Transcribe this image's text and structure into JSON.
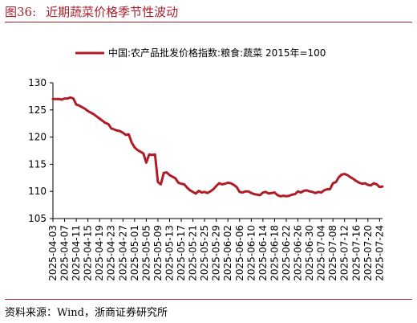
{
  "figure": {
    "number": "图36:",
    "title": "近期蔬菜价格季节性波动",
    "source": "资料来源：Wind，浙商证券研究所"
  },
  "chart_data": {
    "type": "line",
    "title": "",
    "xlabel": "",
    "ylabel": "",
    "ylim": [
      105,
      130
    ],
    "yticks": [
      105,
      110,
      115,
      120,
      125,
      130
    ],
    "grid": false,
    "legend_position": "top",
    "x_tick_labels": [
      "2025-04-03",
      "2025-04-07",
      "2025-04-11",
      "2025-04-15",
      "2025-04-19",
      "2025-04-23",
      "2025-04-27",
      "2025-05-01",
      "2025-05-05",
      "2025-05-09",
      "2025-05-13",
      "2025-05-17",
      "2025-05-21",
      "2025-05-25",
      "2025-05-29",
      "2025-06-02",
      "2025-06-06",
      "2025-06-10",
      "2025-06-14",
      "2025-06-18",
      "2025-06-22",
      "2025-06-26",
      "2025-06-30",
      "2025-07-04",
      "2025-07-08",
      "2025-07-12",
      "2025-07-16",
      "2025-07-20",
      "2025-07-24"
    ],
    "series": [
      {
        "name": "中国:农产品批发价格指数:粮食:蔬菜 2015年=100",
        "color": "#b01c26",
        "x": [
          "2025-04-03",
          "2025-04-04",
          "2025-04-05",
          "2025-04-06",
          "2025-04-07",
          "2025-04-08",
          "2025-04-09",
          "2025-04-10",
          "2025-04-11",
          "2025-04-12",
          "2025-04-13",
          "2025-04-14",
          "2025-04-15",
          "2025-04-16",
          "2025-04-17",
          "2025-04-18",
          "2025-04-19",
          "2025-04-20",
          "2025-04-21",
          "2025-04-22",
          "2025-04-23",
          "2025-04-24",
          "2025-04-25",
          "2025-04-26",
          "2025-04-27",
          "2025-04-28",
          "2025-04-29",
          "2025-04-30",
          "2025-05-01",
          "2025-05-02",
          "2025-05-03",
          "2025-05-04",
          "2025-05-05",
          "2025-05-06",
          "2025-05-07",
          "2025-05-08",
          "2025-05-09",
          "2025-05-10",
          "2025-05-11",
          "2025-05-12",
          "2025-05-13",
          "2025-05-14",
          "2025-05-15",
          "2025-05-16",
          "2025-05-17",
          "2025-05-18",
          "2025-05-19",
          "2025-05-20",
          "2025-05-21",
          "2025-05-22",
          "2025-05-23",
          "2025-05-24",
          "2025-05-25",
          "2025-05-26",
          "2025-05-27",
          "2025-05-28",
          "2025-05-29",
          "2025-05-30",
          "2025-05-31",
          "2025-06-01",
          "2025-06-02",
          "2025-06-03",
          "2025-06-04",
          "2025-06-05",
          "2025-06-06",
          "2025-06-07",
          "2025-06-08",
          "2025-06-09",
          "2025-06-10",
          "2025-06-11",
          "2025-06-12",
          "2025-06-13",
          "2025-06-14",
          "2025-06-15",
          "2025-06-16",
          "2025-06-17",
          "2025-06-18",
          "2025-06-19",
          "2025-06-20",
          "2025-06-21",
          "2025-06-22",
          "2025-06-23",
          "2025-06-24",
          "2025-06-25",
          "2025-06-26",
          "2025-06-27",
          "2025-06-28",
          "2025-06-29",
          "2025-06-30",
          "2025-07-01",
          "2025-07-02",
          "2025-07-03",
          "2025-07-04",
          "2025-07-05",
          "2025-07-06",
          "2025-07-07",
          "2025-07-08",
          "2025-07-09",
          "2025-07-10",
          "2025-07-11",
          "2025-07-12",
          "2025-07-13",
          "2025-07-14",
          "2025-07-15",
          "2025-07-16",
          "2025-07-17",
          "2025-07-18",
          "2025-07-19",
          "2025-07-20",
          "2025-07-21",
          "2025-07-22",
          "2025-07-23",
          "2025-07-24",
          "2025-07-25"
        ],
        "values": [
          127.0,
          127.0,
          127.0,
          126.9,
          127.1,
          127.1,
          127.3,
          127.1,
          126.0,
          125.8,
          125.5,
          125.2,
          124.8,
          124.5,
          124.2,
          123.8,
          123.4,
          123.0,
          122.6,
          122.4,
          121.6,
          121.4,
          121.2,
          121.1,
          120.8,
          120.4,
          120.5,
          119.0,
          118.1,
          117.6,
          117.3,
          117.0,
          115.3,
          116.8,
          116.7,
          116.8,
          111.7,
          111.3,
          113.4,
          113.5,
          113.0,
          112.7,
          112.4,
          111.6,
          111.4,
          111.3,
          110.7,
          110.2,
          109.9,
          109.6,
          110.1,
          109.8,
          109.9,
          109.7,
          110.0,
          110.4,
          111.0,
          111.5,
          111.3,
          111.4,
          111.6,
          111.5,
          111.2,
          110.8,
          109.9,
          109.8,
          110.0,
          110.0,
          109.7,
          109.5,
          109.4,
          109.3,
          109.8,
          109.9,
          109.6,
          109.7,
          109.8,
          109.3,
          109.1,
          109.2,
          109.1,
          109.2,
          109.4,
          109.5,
          110.0,
          109.8,
          110.1,
          110.2,
          110.0,
          109.9,
          109.7,
          109.9,
          109.8,
          110.2,
          110.4,
          110.4,
          111.5,
          111.7,
          112.6,
          113.1,
          113.2,
          113.0,
          112.6,
          112.3,
          111.9,
          111.6,
          111.4,
          111.5,
          111.2,
          111.1,
          111.5,
          111.3,
          110.8,
          110.9
        ]
      }
    ]
  }
}
